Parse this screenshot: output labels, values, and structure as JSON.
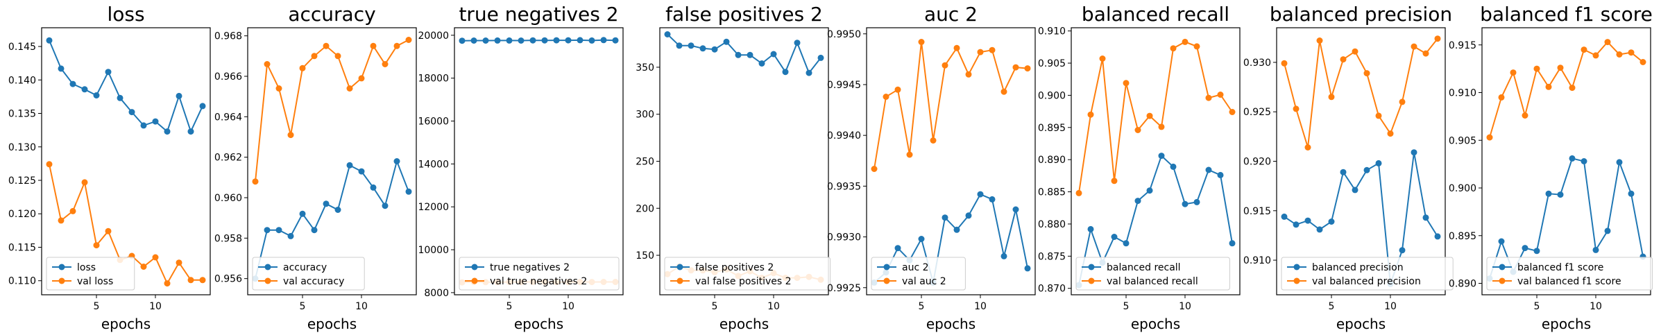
{
  "colors": {
    "train": "#1f77b4",
    "val": "#ff7f0e"
  },
  "chart_data": [
    {
      "type": "line",
      "title": "loss",
      "xlabel": "epochs",
      "ylabel": "",
      "x": [
        1,
        2,
        3,
        4,
        5,
        6,
        7,
        8,
        9,
        10,
        11,
        12,
        13,
        14
      ],
      "xticks": [
        5,
        10
      ],
      "xlim": [
        0.35,
        14.65
      ],
      "yticks": [
        0.11,
        0.115,
        0.12,
        0.125,
        0.13,
        0.135,
        0.14,
        0.145
      ],
      "yticklabels": [
        "0.110",
        "0.115",
        "0.120",
        "0.125",
        "0.130",
        "0.135",
        "0.140",
        "0.145"
      ],
      "ylim": [
        0.1079,
        0.1478
      ],
      "legend": "lower left",
      "series": [
        {
          "name": "loss",
          "values": [
            0.1459,
            0.1417,
            0.1394,
            0.1386,
            0.1377,
            0.1412,
            0.1373,
            0.1352,
            0.1332,
            0.1338,
            0.1323,
            0.1376,
            0.1323,
            0.1361
          ]
        },
        {
          "name": "val loss",
          "values": [
            0.1274,
            0.119,
            0.1204,
            0.1247,
            0.1153,
            0.1174,
            0.1131,
            0.1137,
            0.1121,
            0.1135,
            0.1096,
            0.1127,
            0.1101,
            0.1101
          ]
        }
      ]
    },
    {
      "type": "line",
      "title": "accuracy",
      "xlabel": "epochs",
      "ylabel": "",
      "x": [
        1,
        2,
        3,
        4,
        5,
        6,
        7,
        8,
        9,
        10,
        11,
        12,
        13,
        14
      ],
      "xticks": [
        5,
        10
      ],
      "xlim": [
        0.35,
        14.65
      ],
      "yticks": [
        0.956,
        0.958,
        0.96,
        0.962,
        0.964,
        0.966,
        0.968
      ],
      "yticklabels": [
        "0.956",
        "0.958",
        "0.960",
        "0.962",
        "0.964",
        "0.966",
        "0.968"
      ],
      "ylim": [
        0.9552,
        0.9684
      ],
      "legend": "lower left",
      "series": [
        {
          "name": "accuracy",
          "values": [
            0.956,
            0.9584,
            0.9584,
            0.9581,
            0.9592,
            0.9584,
            0.9597,
            0.9594,
            0.9616,
            0.9613,
            0.9605,
            0.9596,
            0.9618,
            0.9603
          ]
        },
        {
          "name": "val accuracy",
          "values": [
            0.9608,
            0.9666,
            0.9654,
            0.9631,
            0.9664,
            0.967,
            0.9675,
            0.967,
            0.9654,
            0.9659,
            0.9675,
            0.9666,
            0.9675,
            0.9678
          ]
        }
      ]
    },
    {
      "type": "line",
      "title": "true negatives 2",
      "xlabel": "epochs",
      "ylabel": "",
      "x": [
        1,
        2,
        3,
        4,
        5,
        6,
        7,
        8,
        9,
        10,
        11,
        12,
        13,
        14
      ],
      "xticks": [
        5,
        10
      ],
      "xlim": [
        0.35,
        14.65
      ],
      "yticks": [
        8000,
        10000,
        12000,
        14000,
        16000,
        18000,
        20000
      ],
      "yticklabels": [
        "8000",
        "10000",
        "12000",
        "14000",
        "16000",
        "18000",
        "20000"
      ],
      "ylim": [
        7900,
        20350
      ],
      "legend": "lower left",
      "series": [
        {
          "name": "true negatives 2",
          "values": [
            19745,
            19751,
            19753,
            19756,
            19756,
            19753,
            19760,
            19760,
            19766,
            19765,
            19772,
            19755,
            19774,
            19760
          ]
        },
        {
          "name": "val true negatives 2",
          "values": [
            8480,
            8495,
            8490,
            8485,
            8495,
            8496,
            8497,
            8496,
            8490,
            8492,
            8497,
            8495,
            8497,
            8498
          ]
        }
      ]
    },
    {
      "type": "line",
      "title": "false positives 2",
      "xlabel": "epochs",
      "ylabel": "",
      "x": [
        1,
        2,
        3,
        4,
        5,
        6,
        7,
        8,
        9,
        10,
        11,
        12,
        13,
        14
      ],
      "xticks": [
        5,
        10
      ],
      "xlim": [
        0.35,
        14.65
      ],
      "yticks": [
        150,
        200,
        250,
        300,
        350
      ],
      "yticklabels": [
        "150",
        "200",
        "250",
        "300",
        "350"
      ],
      "ylim": [
        108,
        392
      ],
      "legend": "lower left",
      "series": [
        {
          "name": "false positives 2",
          "values": [
            385,
            373,
            373,
            370,
            369,
            377,
            363,
            363,
            354,
            364,
            345,
            376,
            344,
            360
          ]
        },
        {
          "name": "val false positives 2",
          "values": [
            130,
            138,
            134,
            134,
            132,
            135,
            128,
            133,
            126,
            131,
            126,
            126,
            127,
            124
          ]
        }
      ]
    },
    {
      "type": "line",
      "title": "auc 2",
      "xlabel": "epochs",
      "ylabel": "",
      "x": [
        1,
        2,
        3,
        4,
        5,
        6,
        7,
        8,
        9,
        10,
        11,
        12,
        13,
        14
      ],
      "xticks": [
        5,
        10
      ],
      "xlim": [
        0.35,
        14.65
      ],
      "yticks": [
        0.9925,
        0.993,
        0.9935,
        0.994,
        0.9945,
        0.995
      ],
      "yticklabels": [
        "0.9925",
        "0.9930",
        "0.9935",
        "0.9940",
        "0.9945",
        "0.9950"
      ],
      "ylim": [
        0.99243,
        0.99506
      ],
      "legend": "lower left",
      "series": [
        {
          "name": "auc 2",
          "values": [
            0.99255,
            0.99265,
            0.99289,
            0.99277,
            0.99298,
            0.99255,
            0.99319,
            0.99307,
            0.99321,
            0.99342,
            0.99337,
            0.99281,
            0.99327,
            0.99269
          ]
        },
        {
          "name": "val auc 2",
          "values": [
            0.99367,
            0.99438,
            0.99445,
            0.99381,
            0.99492,
            0.99395,
            0.99469,
            0.99486,
            0.9946,
            0.99482,
            0.99484,
            0.99443,
            0.99467,
            0.99466
          ]
        }
      ]
    },
    {
      "type": "line",
      "title": "balanced recall",
      "xlabel": "epochs",
      "ylabel": "",
      "x": [
        1,
        2,
        3,
        4,
        5,
        6,
        7,
        8,
        9,
        10,
        11,
        12,
        13,
        14
      ],
      "xticks": [
        5,
        10
      ],
      "xlim": [
        0.35,
        14.65
      ],
      "yticks": [
        0.87,
        0.875,
        0.88,
        0.885,
        0.89,
        0.895,
        0.9,
        0.905,
        0.91
      ],
      "yticklabels": [
        "0.870",
        "0.875",
        "0.880",
        "0.885",
        "0.890",
        "0.895",
        "0.900",
        "0.905",
        "0.910"
      ],
      "ylim": [
        0.869,
        0.9105
      ],
      "legend": "lower left",
      "series": [
        {
          "name": "balanced recall",
          "values": [
            0.8705,
            0.8792,
            0.874,
            0.878,
            0.877,
            0.8836,
            0.8852,
            0.8906,
            0.8889,
            0.8831,
            0.8834,
            0.8884,
            0.8876,
            0.877
          ]
        },
        {
          "name": "val balanced recall",
          "values": [
            0.8848,
            0.897,
            0.9057,
            0.8867,
            0.9019,
            0.8946,
            0.8968,
            0.8951,
            0.9073,
            0.9083,
            0.9076,
            0.8996,
            0.9001,
            0.8974
          ]
        }
      ]
    },
    {
      "type": "line",
      "title": "balanced precision",
      "xlabel": "epochs",
      "ylabel": "",
      "x": [
        1,
        2,
        3,
        4,
        5,
        6,
        7,
        8,
        9,
        10,
        11,
        12,
        13,
        14
      ],
      "xticks": [
        5,
        10
      ],
      "xlim": [
        0.35,
        14.65
      ],
      "yticks": [
        0.91,
        0.915,
        0.92,
        0.925,
        0.93
      ],
      "yticklabels": [
        "0.910",
        "0.915",
        "0.920",
        "0.925",
        "0.930"
      ],
      "ylim": [
        0.9065,
        0.9335
      ],
      "legend": "lower left",
      "series": [
        {
          "name": "balanced precision",
          "values": [
            0.9144,
            0.9136,
            0.914,
            0.9131,
            0.9139,
            0.9189,
            0.9171,
            0.9191,
            0.9198,
            0.9076,
            0.911,
            0.9209,
            0.9143,
            0.9124
          ]
        },
        {
          "name": "val balanced precision",
          "values": [
            0.9299,
            0.9253,
            0.9214,
            0.9322,
            0.9265,
            0.9303,
            0.9311,
            0.9289,
            0.9246,
            0.9228,
            0.926,
            0.9316,
            0.9309,
            0.9324
          ]
        }
      ]
    },
    {
      "type": "line",
      "title": "balanced f1 score",
      "xlabel": "epochs",
      "ylabel": "",
      "x": [
        1,
        2,
        3,
        4,
        5,
        6,
        7,
        8,
        9,
        10,
        11,
        12,
        13,
        14
      ],
      "xticks": [
        5,
        10
      ],
      "xlim": [
        0.35,
        14.65
      ],
      "yticks": [
        0.89,
        0.895,
        0.9,
        0.905,
        0.91,
        0.915
      ],
      "yticklabels": [
        "0.890",
        "0.895",
        "0.900",
        "0.905",
        "0.910",
        "0.915"
      ],
      "ylim": [
        0.8888,
        0.9168
      ],
      "legend": "lower left",
      "series": [
        {
          "name": "balanced f1 score",
          "values": [
            0.8905,
            0.8944,
            0.8912,
            0.8937,
            0.8934,
            0.8994,
            0.8993,
            0.9031,
            0.9028,
            0.8935,
            0.8955,
            0.9027,
            0.8994,
            0.8928
          ]
        },
        {
          "name": "val balanced f1 score",
          "values": [
            0.9053,
            0.9095,
            0.9121,
            0.9076,
            0.9125,
            0.9106,
            0.9126,
            0.9105,
            0.9145,
            0.9139,
            0.9153,
            0.914,
            0.9142,
            0.9132
          ]
        }
      ]
    }
  ]
}
